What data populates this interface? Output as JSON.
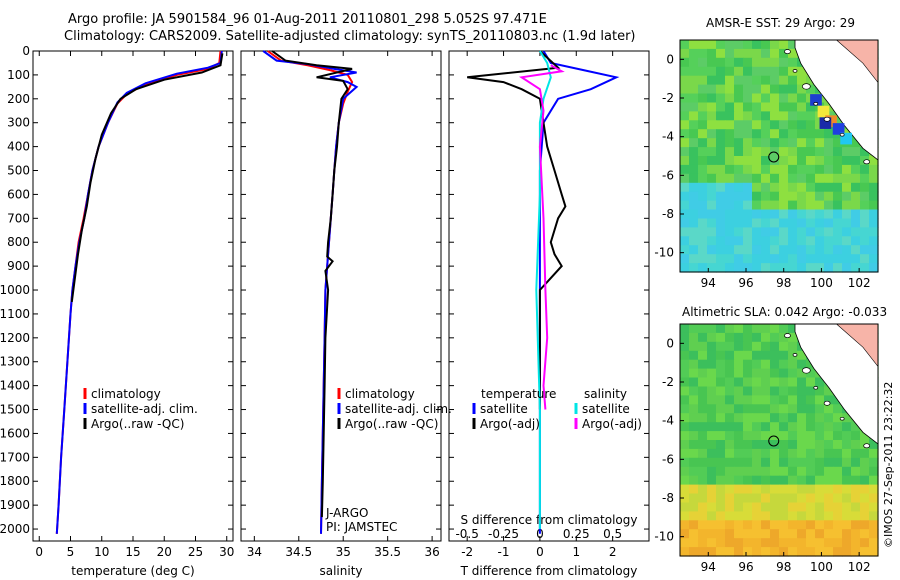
{
  "title": {
    "line1": "Argo profile: JA 5901584_96 01-Aug-2011 20110801_298 5.052S 97.471E",
    "line2": "Climatology: CARS2009. Satellite-adjusted climatology: synTS_20110803.nc (1.9d later)"
  },
  "timestamp": "©IMOS 27-Sep-2011 23:22:32",
  "colors": {
    "climatology": "#ff0000",
    "satellite": "#0000ff",
    "argo": "#000000",
    "salinity_satellite": "#00e5e5",
    "salinity_argo": "#ff00ff"
  },
  "chart_data": [
    {
      "type": "line",
      "name": "temperature-profile",
      "xlabel": "temperature (deg C)",
      "ylabel": "",
      "xlim": [
        -1,
        31
      ],
      "ylim": [
        2050,
        0
      ],
      "xticks": [
        0,
        5,
        10,
        15,
        20,
        25,
        30
      ],
      "yticks": [
        0,
        100,
        200,
        300,
        400,
        500,
        600,
        700,
        800,
        900,
        1000,
        1100,
        1200,
        1300,
        1400,
        1500,
        1600,
        1700,
        1800,
        1900,
        2000
      ],
      "legend": [
        "climatology",
        "satellite-adj. clim.",
        "Argo(..raw -QC)"
      ],
      "series": [
        {
          "name": "climatology",
          "color": "#ff0000",
          "points": [
            [
              29,
              0
            ],
            [
              28.8,
              50
            ],
            [
              27,
              75
            ],
            [
              22,
              100
            ],
            [
              17,
              140
            ],
            [
              14,
              180
            ],
            [
              12.5,
              220
            ],
            [
              11,
              300
            ],
            [
              9.5,
              400
            ],
            [
              8.5,
              500
            ],
            [
              7.8,
              600
            ],
            [
              7.1,
              700
            ],
            [
              6.3,
              800
            ],
            [
              5.8,
              900
            ],
            [
              5.3,
              1000
            ],
            [
              5,
              1100
            ],
            [
              4.5,
              1300
            ],
            [
              4,
              1500
            ],
            [
              3.5,
              1700
            ],
            [
              3.1,
              1900
            ],
            [
              2.8,
              2020
            ]
          ]
        },
        {
          "name": "satellite-adj. clim.",
          "color": "#0000ff",
          "points": [
            [
              29.2,
              0
            ],
            [
              29,
              50
            ],
            [
              27,
              70
            ],
            [
              22,
              95
            ],
            [
              17,
              135
            ],
            [
              14,
              175
            ],
            [
              12.5,
              215
            ],
            [
              11,
              300
            ],
            [
              9.5,
              400
            ],
            [
              8.5,
              500
            ],
            [
              7.8,
              600
            ],
            [
              7.2,
              700
            ],
            [
              6.4,
              800
            ],
            [
              5.8,
              900
            ],
            [
              5.3,
              1000
            ],
            [
              5,
              1100
            ],
            [
              4.5,
              1300
            ],
            [
              4,
              1500
            ],
            [
              3.5,
              1700
            ],
            [
              3.1,
              1900
            ],
            [
              2.8,
              2020
            ]
          ]
        },
        {
          "name": "Argo(..raw -QC)",
          "color": "#000000",
          "points": [
            [
              29.3,
              10
            ],
            [
              29,
              60
            ],
            [
              26,
              90
            ],
            [
              20,
              120
            ],
            [
              15.5,
              160
            ],
            [
              13,
              200
            ],
            [
              11.5,
              260
            ],
            [
              10,
              350
            ],
            [
              9,
              450
            ],
            [
              8.2,
              550
            ],
            [
              7.6,
              650
            ],
            [
              6.8,
              750
            ],
            [
              6.2,
              850
            ],
            [
              5.7,
              950
            ],
            [
              5.2,
              1050
            ]
          ]
        }
      ]
    },
    {
      "type": "line",
      "name": "salinity-profile",
      "xlabel": "salinity",
      "ylabel": "",
      "xlim": [
        33.85,
        36.1
      ],
      "ylim": [
        2050,
        0
      ],
      "xticks": [
        34,
        34.5,
        35,
        35.5,
        36
      ],
      "legend": [
        "climatology",
        "satellite-adj. clim.",
        "Argo(..raw -QC)"
      ],
      "annotation": [
        "J-ARGO",
        "PI: JAMSTEC"
      ],
      "series": [
        {
          "name": "climatology",
          "color": "#ff0000",
          "points": [
            [
              34.15,
              0
            ],
            [
              34.3,
              40
            ],
            [
              34.6,
              60
            ],
            [
              34.85,
              80
            ],
            [
              35.05,
              100
            ],
            [
              35.1,
              130
            ],
            [
              35.05,
              170
            ],
            [
              35,
              220
            ],
            [
              34.95,
              300
            ],
            [
              34.92,
              400
            ],
            [
              34.9,
              500
            ],
            [
              34.88,
              600
            ],
            [
              34.86,
              700
            ],
            [
              34.84,
              800
            ],
            [
              34.82,
              900
            ],
            [
              34.8,
              1000
            ],
            [
              34.79,
              1200
            ],
            [
              34.78,
              1400
            ],
            [
              34.77,
              1600
            ],
            [
              34.76,
              1800
            ],
            [
              34.75,
              2020
            ]
          ]
        },
        {
          "name": "satellite-adj. clim.",
          "color": "#0000ff",
          "points": [
            [
              34.1,
              0
            ],
            [
              34.25,
              40
            ],
            [
              34.6,
              55
            ],
            [
              34.9,
              75
            ],
            [
              35.15,
              90
            ],
            [
              34.85,
              110
            ],
            [
              35.05,
              130
            ],
            [
              35.15,
              150
            ],
            [
              35,
              200
            ],
            [
              34.95,
              300
            ],
            [
              34.92,
              400
            ],
            [
              34.9,
              500
            ],
            [
              34.88,
              600
            ],
            [
              34.86,
              700
            ],
            [
              34.84,
              800
            ],
            [
              34.82,
              900
            ],
            [
              34.8,
              1000
            ],
            [
              34.79,
              1200
            ],
            [
              34.78,
              1400
            ],
            [
              34.77,
              1600
            ],
            [
              34.76,
              1800
            ],
            [
              34.75,
              2020
            ]
          ]
        },
        {
          "name": "Argo(..raw -QC)",
          "color": "#000000",
          "points": [
            [
              34.2,
              0
            ],
            [
              34.35,
              40
            ],
            [
              34.7,
              60
            ],
            [
              35.1,
              75
            ],
            [
              34.7,
              110
            ],
            [
              35,
              125
            ],
            [
              35.05,
              160
            ],
            [
              34.98,
              200
            ],
            [
              34.95,
              300
            ],
            [
              34.93,
              400
            ],
            [
              34.9,
              500
            ],
            [
              34.88,
              600
            ],
            [
              34.86,
              700
            ],
            [
              34.83,
              800
            ],
            [
              34.82,
              860
            ],
            [
              34.88,
              880
            ],
            [
              34.8,
              920
            ],
            [
              34.83,
              1000
            ],
            [
              34.8,
              1200
            ],
            [
              34.79,
              1400
            ],
            [
              34.78,
              1600
            ],
            [
              34.77,
              1800
            ],
            [
              34.76,
              1950
            ]
          ]
        }
      ]
    },
    {
      "type": "line",
      "name": "difference-profile",
      "xlabel": "T difference from climatology",
      "xlabel_top": "S difference from climatology",
      "xlim": [
        -2.5,
        3
      ],
      "ylim": [
        2050,
        0
      ],
      "xticks": [
        -2,
        -1,
        0,
        1,
        2
      ],
      "xticks_top": [
        -0.5,
        -0.25,
        0,
        0.25,
        0.5
      ],
      "legend_headers": [
        "temperature",
        "salinity"
      ],
      "legend": [
        "satellite",
        "Argo(-adj)",
        "satellite",
        "Argo(-adj)"
      ],
      "series": [
        {
          "name": "satellite",
          "color": "#0000ff",
          "points": [
            [
              0.1,
              0
            ],
            [
              0.3,
              50
            ],
            [
              1.2,
              80
            ],
            [
              2.1,
              110
            ],
            [
              1.4,
              160
            ],
            [
              0.5,
              200
            ],
            [
              0.1,
              300
            ],
            [
              0,
              500
            ],
            [
              0,
              1000
            ],
            [
              0,
              1500
            ],
            [
              0,
              2020
            ]
          ]
        },
        {
          "name": "Argo(-adj)",
          "color": "#000000",
          "points": [
            [
              0,
              0
            ],
            [
              0.5,
              70
            ],
            [
              -2,
              110
            ],
            [
              -1,
              130
            ],
            [
              -0.5,
              160
            ],
            [
              0,
              200
            ],
            [
              0.1,
              300
            ],
            [
              0.2,
              400
            ],
            [
              0.4,
              500
            ],
            [
              0.6,
              600
            ],
            [
              0.7,
              650
            ],
            [
              0.5,
              700
            ],
            [
              0.3,
              800
            ],
            [
              0.4,
              850
            ],
            [
              0.6,
              900
            ],
            [
              0.3,
              950
            ],
            [
              0,
              1000
            ],
            [
              0,
              1200
            ],
            [
              0,
              1500
            ]
          ]
        },
        {
          "name": "salinity satellite",
          "color": "#00e5e5",
          "points": [
            [
              0,
              0
            ],
            [
              0.2,
              50
            ],
            [
              0.3,
              110
            ],
            [
              0.1,
              200
            ],
            [
              0,
              300
            ],
            [
              0,
              600
            ],
            [
              -0.1,
              1000
            ],
            [
              0,
              1500
            ],
            [
              0,
              2000
            ]
          ]
        },
        {
          "name": "salinity Argo(-adj)",
          "color": "#ff00ff",
          "points": [
            [
              0.3,
              60
            ],
            [
              0.6,
              85
            ],
            [
              -0.5,
              110
            ],
            [
              0,
              160
            ],
            [
              0.1,
              250
            ],
            [
              0,
              400
            ],
            [
              0.1,
              700
            ],
            [
              0.15,
              1000
            ],
            [
              0.2,
              1200
            ],
            [
              0.1,
              1400
            ],
            [
              0.15,
              1500
            ]
          ]
        }
      ]
    },
    {
      "type": "heatmap",
      "name": "sst-map",
      "title": "AMSR-E SST: 29 Argo: 29",
      "xticks": [
        94,
        96,
        98,
        100,
        102
      ],
      "yticks": [
        0,
        -2,
        -4,
        -6,
        -8,
        -10
      ],
      "xlim": [
        92.5,
        103
      ],
      "ylim": [
        -11,
        1
      ],
      "float_position": [
        97.471,
        -5.052
      ]
    },
    {
      "type": "heatmap",
      "name": "sla-map",
      "title": "Altimetric SLA: 0.042 Argo: -0.033",
      "xticks": [
        94,
        96,
        98,
        100,
        102
      ],
      "yticks": [
        0,
        -2,
        -4,
        -6,
        -8,
        -10
      ],
      "xlim": [
        92.5,
        103
      ],
      "ylim": [
        -11,
        1
      ],
      "float_position": [
        97.471,
        -5.052
      ]
    }
  ]
}
